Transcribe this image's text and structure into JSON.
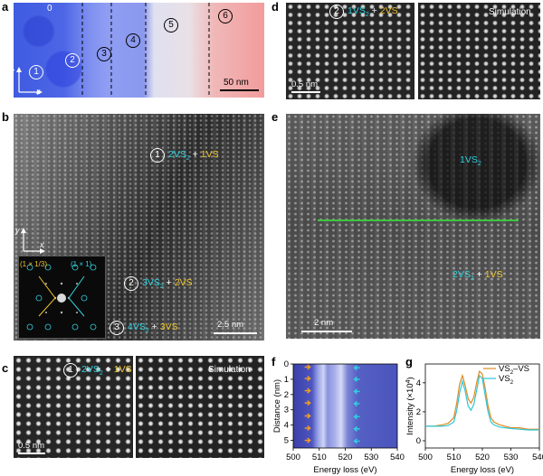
{
  "panel_labels": {
    "a": "a",
    "b": "b",
    "c": "c",
    "d": "d",
    "e": "e",
    "f": "f",
    "g": "g"
  },
  "panel_a": {
    "region_top_label": "0",
    "regions": [
      "1",
      "2",
      "3",
      "4",
      "5",
      "6"
    ],
    "axis_y": "y",
    "axis_x": "x",
    "scale": "50 nm"
  },
  "panel_b": {
    "annot1": {
      "num": "1",
      "phase_a": "2VS",
      "sub_a": "2",
      "plus": " + ",
      "phase_b": "1VS"
    },
    "annot2": {
      "num": "2",
      "phase_a": "3VS",
      "sub_a": "2",
      "plus": " + ",
      "phase_b": "2VS"
    },
    "annot3": {
      "num": "3",
      "phase_a": "4VS",
      "sub_a": "2",
      "plus": " + ",
      "phase_b": "3VS"
    },
    "fft_left": "(1 × 1/3)",
    "fft_right": "(1 × 1)",
    "axis_y": "y",
    "axis_x": "x",
    "scale": "2.5 nm"
  },
  "panel_c": {
    "annot": {
      "num": "1",
      "phase_a": "2VS",
      "sub_a": "2",
      "plus": " + ",
      "phase_b": "1VS"
    },
    "simulation": "Simulation",
    "scale": "0.5 nm"
  },
  "panel_d": {
    "annot": {
      "num": "2",
      "phase_a": "1VS",
      "sub_a": "2",
      "plus": " + ",
      "phase_b": "2VS"
    },
    "simulation": "Simulation",
    "scale": "0.5 nm"
  },
  "panel_e": {
    "top_label": {
      "phase": "1VS",
      "sub": "2"
    },
    "annot": {
      "phase_a": "2VS",
      "sub_a": "2",
      "plus": " + ",
      "phase_b": "1VS"
    },
    "scale": "2 nm"
  },
  "colors": {
    "cyan": "#2fd3e0",
    "yellow": "#f0c52e",
    "line_green": "#3ec43e",
    "vs2_vs": "#e08a22",
    "vs2": "#2cc7d8"
  },
  "chart_data": [
    {
      "id": "f",
      "type": "heatmap",
      "xlabel": "Energy loss (eV)",
      "ylabel": "Distance (nm)",
      "xlim": [
        500,
        540
      ],
      "ylim": [
        5.5,
        0
      ],
      "xticks": [
        500,
        510,
        520,
        530,
        540
      ],
      "yticks": [
        0,
        1,
        2,
        3,
        4,
        5
      ],
      "orange_arrow_distances": [
        0.2,
        0.95,
        1.75,
        2.55,
        3.4,
        4.2,
        5.0
      ],
      "cyan_arrow_distances": [
        0.25,
        1.0,
        1.8,
        2.6,
        3.45,
        4.25,
        5.05
      ]
    },
    {
      "id": "g",
      "type": "line",
      "xlabel": "Energy loss (eV)",
      "ylabel": "Intensity (×10",
      "ylabel_sup": "4",
      "ylabel_end": ")",
      "xlim": [
        500,
        540
      ],
      "ylim": [
        -0.5,
        5.3
      ],
      "xticks": [
        500,
        510,
        520,
        530,
        540
      ],
      "yticks": [
        0,
        2,
        4
      ],
      "legend": [
        {
          "label": "VS",
          "sub": "2",
          "suffix": "–VS"
        },
        {
          "label": "VS",
          "sub": "2",
          "suffix": ""
        }
      ],
      "series": [
        {
          "name": "VS2–VS",
          "x": [
            500,
            503,
            506,
            508,
            510,
            511,
            512,
            513,
            514,
            515,
            516,
            517,
            518,
            519,
            520,
            521,
            522,
            523,
            524,
            526,
            528,
            530,
            533,
            536,
            540
          ],
          "y": [
            1.0,
            1.0,
            1.1,
            1.2,
            1.6,
            2.6,
            3.9,
            4.5,
            3.8,
            2.9,
            2.6,
            3.0,
            4.0,
            4.8,
            4.6,
            3.6,
            2.4,
            1.6,
            1.3,
            1.1,
            1.0,
            0.9,
            0.9,
            0.8,
            0.8
          ]
        },
        {
          "name": "VS2",
          "x": [
            500,
            503,
            506,
            508,
            510,
            511,
            512,
            513,
            514,
            515,
            516,
            517,
            518,
            519,
            520,
            521,
            522,
            523,
            524,
            526,
            528,
            530,
            533,
            536,
            540
          ],
          "y": [
            1.0,
            1.0,
            1.0,
            1.05,
            1.3,
            2.1,
            3.3,
            4.1,
            3.4,
            2.4,
            2.1,
            2.5,
            3.5,
            4.5,
            4.3,
            3.1,
            2.0,
            1.3,
            1.1,
            0.95,
            0.9,
            0.85,
            0.8,
            0.75,
            0.75
          ]
        }
      ]
    }
  ]
}
